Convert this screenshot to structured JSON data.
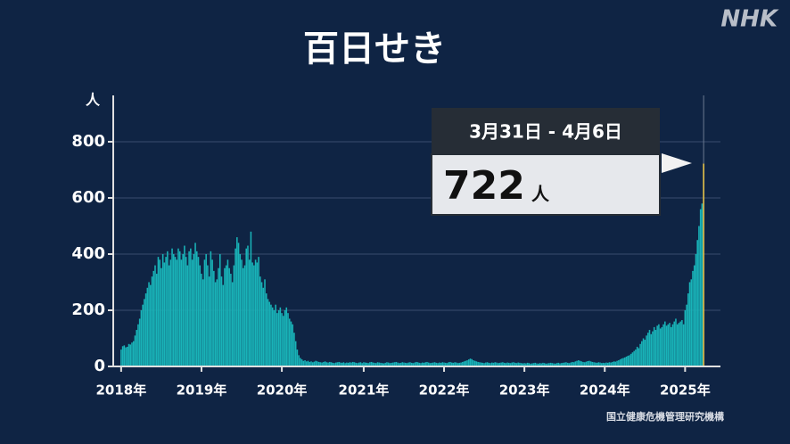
{
  "brand": "NHK",
  "source": "国立健康危機管理研究機構",
  "chart_data": {
    "type": "bar",
    "title": "百日せき",
    "y_label": "人",
    "color": "#19b3b8",
    "highlight_color": "#e8c44a",
    "grid": true,
    "ylim": [
      0,
      965
    ],
    "yticks": [
      0,
      200,
      400,
      600,
      800
    ],
    "annotation": {
      "date": "3月31日 - 4月6日",
      "unit": "人"
    },
    "categories": [
      "2018年",
      null,
      null,
      null,
      null,
      null,
      null,
      null,
      null,
      null,
      null,
      null,
      null,
      null,
      null,
      null,
      null,
      null,
      null,
      null,
      null,
      null,
      null,
      null,
      null,
      null,
      null,
      null,
      null,
      null,
      null,
      null,
      null,
      null,
      null,
      null,
      null,
      null,
      null,
      null,
      null,
      null,
      null,
      null,
      null,
      null,
      null,
      null,
      null,
      null,
      null,
      null,
      "2019年",
      null,
      null,
      null,
      null,
      null,
      null,
      null,
      null,
      null,
      null,
      null,
      null,
      null,
      null,
      null,
      null,
      null,
      null,
      null,
      null,
      null,
      null,
      null,
      null,
      null,
      null,
      null,
      null,
      null,
      null,
      null,
      null,
      null,
      null,
      null,
      null,
      null,
      null,
      null,
      null,
      null,
      null,
      null,
      null,
      null,
      null,
      null,
      null,
      null,
      null,
      null,
      "2020年",
      null,
      null,
      null,
      null,
      null,
      null,
      null,
      null,
      null,
      null,
      null,
      null,
      null,
      null,
      null,
      null,
      null,
      null,
      null,
      null,
      null,
      null,
      null,
      null,
      null,
      null,
      null,
      null,
      null,
      null,
      null,
      null,
      null,
      null,
      null,
      null,
      null,
      null,
      null,
      null,
      null,
      null,
      null,
      null,
      null,
      null,
      null,
      null,
      null,
      null,
      null,
      null,
      "2021年",
      null,
      null,
      null,
      null,
      null,
      null,
      null,
      null,
      null,
      null,
      null,
      null,
      null,
      null,
      null,
      null,
      null,
      null,
      null,
      null,
      null,
      null,
      null,
      null,
      null,
      null,
      null,
      null,
      null,
      null,
      null,
      null,
      null,
      null,
      null,
      null,
      null,
      null,
      null,
      null,
      null,
      null,
      null,
      null,
      null,
      null,
      null,
      null,
      null,
      null,
      null,
      "2022年",
      null,
      null,
      null,
      null,
      null,
      null,
      null,
      null,
      null,
      null,
      null,
      null,
      null,
      null,
      null,
      null,
      null,
      null,
      null,
      null,
      null,
      null,
      null,
      null,
      null,
      null,
      null,
      null,
      null,
      null,
      null,
      null,
      null,
      null,
      null,
      null,
      null,
      null,
      null,
      null,
      null,
      null,
      null,
      null,
      null,
      null,
      null,
      null,
      null,
      null,
      null,
      "2023年",
      null,
      null,
      null,
      null,
      null,
      null,
      null,
      null,
      null,
      null,
      null,
      null,
      null,
      null,
      null,
      null,
      null,
      null,
      null,
      null,
      null,
      null,
      null,
      null,
      null,
      null,
      null,
      null,
      null,
      null,
      null,
      null,
      null,
      null,
      null,
      null,
      null,
      null,
      null,
      null,
      null,
      null,
      null,
      null,
      null,
      null,
      null,
      null,
      null,
      null,
      null,
      "2024年",
      null,
      null,
      null,
      null,
      null,
      null,
      null,
      null,
      null,
      null,
      null,
      null,
      null,
      null,
      null,
      null,
      null,
      null,
      null,
      null,
      null,
      null,
      null,
      null,
      null,
      null,
      null,
      null,
      null,
      null,
      null,
      null,
      null,
      null,
      null,
      null,
      null,
      null,
      null,
      null,
      null,
      null,
      null,
      null,
      null,
      null,
      null,
      null,
      null,
      null,
      null,
      "2025年",
      null,
      null,
      null,
      null,
      null,
      null,
      null,
      null,
      null,
      null,
      null,
      null
    ],
    "values": [
      60,
      72,
      75,
      68,
      70,
      80,
      78,
      85,
      90,
      110,
      130,
      150,
      170,
      200,
      220,
      240,
      260,
      280,
      300,
      290,
      320,
      340,
      360,
      330,
      390,
      380,
      350,
      400,
      370,
      390,
      410,
      360,
      380,
      420,
      400,
      390,
      380,
      420,
      410,
      380,
      400,
      430,
      390,
      360,
      410,
      420,
      380,
      400,
      440,
      410,
      390,
      360,
      330,
      310,
      380,
      400,
      360,
      320,
      410,
      380,
      340,
      300,
      310,
      350,
      400,
      320,
      290,
      350,
      360,
      380,
      350,
      330,
      300,
      360,
      420,
      460,
      440,
      400,
      380,
      350,
      360,
      420,
      430,
      380,
      480,
      370,
      360,
      380,
      370,
      390,
      320,
      300,
      280,
      310,
      260,
      240,
      230,
      220,
      210,
      200,
      220,
      190,
      200,
      210,
      190,
      180,
      200,
      210,
      190,
      170,
      160,
      150,
      120,
      90,
      60,
      40,
      30,
      25,
      20,
      22,
      18,
      20,
      16,
      18,
      15,
      17,
      20,
      18,
      16,
      15,
      14,
      16,
      18,
      15,
      14,
      16,
      15,
      13,
      12,
      14,
      15,
      16,
      14,
      13,
      15,
      12,
      14,
      13,
      15,
      14,
      16,
      15,
      13,
      12,
      14,
      15,
      12,
      15,
      14,
      13,
      12,
      15,
      16,
      14,
      13,
      12,
      15,
      14,
      13,
      12,
      11,
      13,
      15,
      14,
      12,
      13,
      14,
      15,
      16,
      14,
      12,
      13,
      15,
      14,
      13,
      12,
      14,
      15,
      13,
      12,
      14,
      16,
      15,
      13,
      12,
      14,
      13,
      15,
      16,
      14,
      12,
      13,
      14,
      15,
      13,
      12,
      14,
      13,
      15,
      14,
      13,
      12,
      15,
      16,
      14,
      13,
      15,
      14,
      12,
      13,
      14,
      16,
      18,
      20,
      22,
      25,
      28,
      26,
      22,
      20,
      18,
      16,
      15,
      14,
      13,
      12,
      14,
      15,
      13,
      12,
      14,
      13,
      15,
      14,
      12,
      13,
      14,
      15,
      13,
      12,
      14,
      13,
      12,
      14,
      15,
      13,
      12,
      14,
      13,
      12,
      11,
      12,
      11,
      13,
      12,
      10,
      11,
      12,
      13,
      11,
      10,
      12,
      11,
      13,
      12,
      10,
      11,
      12,
      13,
      12,
      11,
      10,
      12,
      13,
      11,
      12,
      13,
      14,
      15,
      13,
      12,
      14,
      16,
      15,
      18,
      20,
      22,
      20,
      18,
      16,
      15,
      17,
      19,
      20,
      18,
      16,
      15,
      14,
      13,
      15,
      14,
      12,
      13,
      12,
      14,
      13,
      15,
      14,
      16,
      18,
      17,
      20,
      22,
      25,
      28,
      30,
      32,
      35,
      38,
      40,
      45,
      50,
      55,
      60,
      70,
      65,
      80,
      90,
      100,
      95,
      110,
      120,
      130,
      115,
      125,
      140,
      130,
      145,
      150,
      135,
      140,
      150,
      160,
      145,
      150,
      155,
      140,
      150,
      160,
      170,
      150,
      155,
      160,
      165,
      150,
      200,
      220,
      260,
      300,
      310,
      340,
      360,
      400,
      450,
      500,
      560,
      580,
      722
    ]
  }
}
